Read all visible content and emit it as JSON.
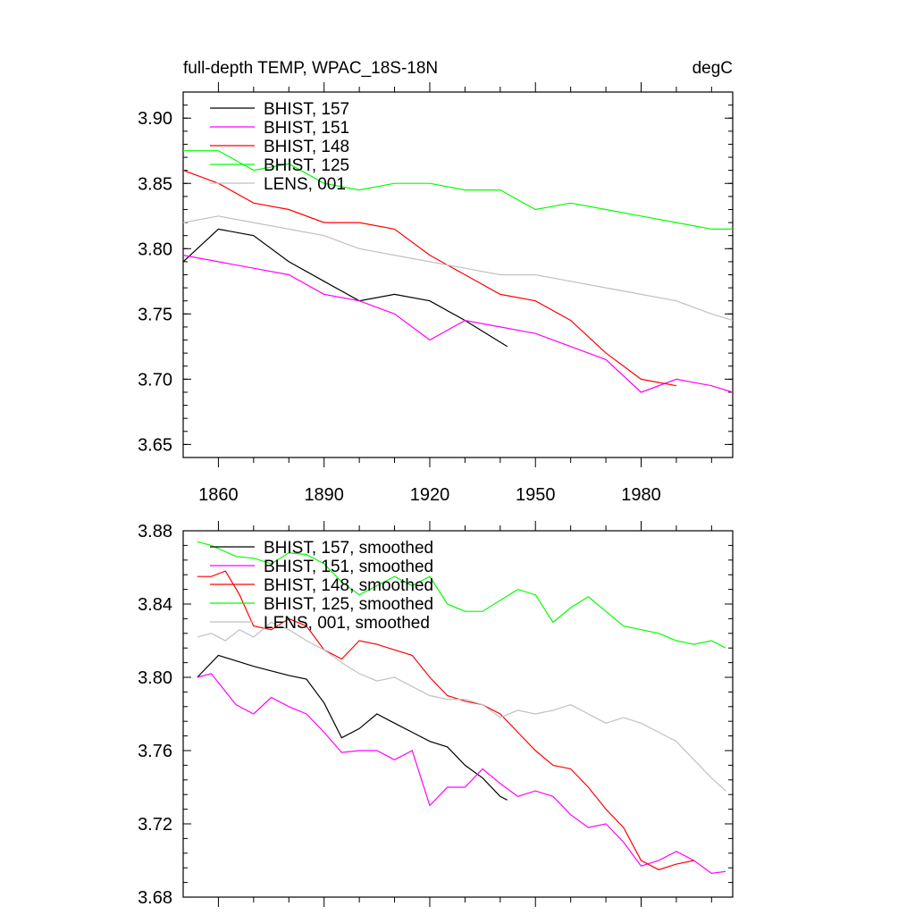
{
  "chart_data": [
    {
      "type": "line",
      "title": "full-depth TEMP, WPAC_18S-18N",
      "units_label": "degC",
      "ylim": [
        3.64,
        3.92
      ],
      "xlim": [
        1850,
        2006
      ],
      "yticks": [
        "3.65",
        "3.70",
        "3.75",
        "3.80",
        "3.85",
        "3.90"
      ],
      "xticks": [
        "1860",
        "1890",
        "1920",
        "1950",
        "1980"
      ],
      "grid": false,
      "legend_position": "top-left",
      "series": [
        {
          "name": "BHIST, 157",
          "color": "#000000",
          "x": [
            1850,
            1860,
            1870,
            1880,
            1890,
            1900,
            1910,
            1920,
            1930,
            1942
          ],
          "values": [
            3.79,
            3.815,
            3.81,
            3.79,
            3.775,
            3.76,
            3.765,
            3.76,
            3.745,
            3.725
          ]
        },
        {
          "name": "BHIST, 151",
          "color": "#ff00ff",
          "x": [
            1850,
            1860,
            1870,
            1880,
            1890,
            1900,
            1910,
            1920,
            1930,
            1940,
            1950,
            1960,
            1970,
            1980,
            1990,
            2000,
            2006
          ],
          "values": [
            3.795,
            3.79,
            3.785,
            3.78,
            3.765,
            3.76,
            3.75,
            3.73,
            3.745,
            3.74,
            3.735,
            3.725,
            3.715,
            3.69,
            3.7,
            3.695,
            3.69
          ]
        },
        {
          "name": "BHIST, 148",
          "color": "#ff0000",
          "x": [
            1850,
            1860,
            1870,
            1880,
            1890,
            1900,
            1910,
            1920,
            1930,
            1940,
            1950,
            1960,
            1970,
            1980,
            1990
          ],
          "values": [
            3.86,
            3.85,
            3.835,
            3.83,
            3.82,
            3.82,
            3.815,
            3.795,
            3.78,
            3.765,
            3.76,
            3.745,
            3.72,
            3.7,
            3.695
          ]
        },
        {
          "name": "BHIST, 125",
          "color": "#00ff00",
          "x": [
            1850,
            1860,
            1870,
            1880,
            1890,
            1900,
            1910,
            1920,
            1930,
            1940,
            1950,
            1960,
            1970,
            1980,
            1990,
            2000,
            2006
          ],
          "values": [
            3.875,
            3.875,
            3.86,
            3.865,
            3.85,
            3.845,
            3.85,
            3.85,
            3.845,
            3.845,
            3.83,
            3.835,
            3.83,
            3.825,
            3.82,
            3.815,
            3.815
          ]
        },
        {
          "name": "LENS, 001",
          "color": "#c0c0c0",
          "x": [
            1850,
            1860,
            1870,
            1880,
            1890,
            1900,
            1910,
            1920,
            1930,
            1940,
            1950,
            1960,
            1970,
            1980,
            1990,
            2000,
            2006
          ],
          "values": [
            3.82,
            3.825,
            3.82,
            3.815,
            3.81,
            3.8,
            3.795,
            3.79,
            3.785,
            3.78,
            3.78,
            3.775,
            3.77,
            3.765,
            3.76,
            3.75,
            3.745
          ]
        }
      ]
    },
    {
      "type": "line",
      "title": "",
      "ylim": [
        3.68,
        3.88
      ],
      "xlim": [
        1850,
        2006
      ],
      "yticks": [
        "3.68",
        "3.72",
        "3.76",
        "3.80",
        "3.84",
        "3.88"
      ],
      "xticks": [],
      "grid": false,
      "legend_position": "top-left",
      "series": [
        {
          "name": "BHIST, 157, smoothed",
          "color": "#000000",
          "x": [
            1854,
            1860,
            1870,
            1880,
            1885,
            1890,
            1895,
            1900,
            1905,
            1910,
            1915,
            1920,
            1925,
            1930,
            1935,
            1940,
            1942
          ],
          "values": [
            3.8,
            3.812,
            3.806,
            3.801,
            3.799,
            3.786,
            3.767,
            3.772,
            3.78,
            3.775,
            3.77,
            3.765,
            3.762,
            3.752,
            3.745,
            3.735,
            3.733
          ]
        },
        {
          "name": "BHIST, 151, smoothed",
          "color": "#ff00ff",
          "x": [
            1854,
            1858,
            1865,
            1870,
            1875,
            1880,
            1885,
            1890,
            1895,
            1900,
            1905,
            1910,
            1915,
            1920,
            1925,
            1930,
            1935,
            1940,
            1945,
            1950,
            1955,
            1960,
            1965,
            1970,
            1975,
            1980,
            1985,
            1990,
            1995,
            2000,
            2004
          ],
          "values": [
            3.8,
            3.802,
            3.785,
            3.78,
            3.789,
            3.784,
            3.78,
            3.77,
            3.759,
            3.76,
            3.76,
            3.755,
            3.76,
            3.73,
            3.74,
            3.74,
            3.75,
            3.742,
            3.735,
            3.738,
            3.735,
            3.725,
            3.718,
            3.72,
            3.71,
            3.697,
            3.7,
            3.705,
            3.7,
            3.693,
            3.694
          ]
        },
        {
          "name": "BHIST, 148, smoothed",
          "color": "#ff0000",
          "x": [
            1854,
            1858,
            1862,
            1866,
            1870,
            1875,
            1880,
            1885,
            1890,
            1895,
            1900,
            1905,
            1910,
            1915,
            1920,
            1925,
            1930,
            1935,
            1940,
            1945,
            1950,
            1955,
            1960,
            1965,
            1970,
            1975,
            1980,
            1985,
            1990,
            1995
          ],
          "values": [
            3.855,
            3.855,
            3.858,
            3.845,
            3.828,
            3.826,
            3.832,
            3.828,
            3.815,
            3.81,
            3.82,
            3.818,
            3.815,
            3.812,
            3.8,
            3.79,
            3.787,
            3.785,
            3.78,
            3.77,
            3.76,
            3.752,
            3.75,
            3.74,
            3.728,
            3.718,
            3.7,
            3.695,
            3.698,
            3.7
          ]
        },
        {
          "name": "BHIST, 125, smoothed",
          "color": "#00ff00",
          "x": [
            1854,
            1858,
            1865,
            1870,
            1875,
            1880,
            1885,
            1890,
            1895,
            1900,
            1905,
            1910,
            1915,
            1920,
            1925,
            1930,
            1935,
            1940,
            1945,
            1950,
            1955,
            1960,
            1965,
            1970,
            1975,
            1980,
            1985,
            1990,
            1995,
            2000,
            2004
          ],
          "values": [
            3.874,
            3.872,
            3.866,
            3.865,
            3.862,
            3.868,
            3.867,
            3.862,
            3.852,
            3.845,
            3.85,
            3.855,
            3.85,
            3.855,
            3.84,
            3.836,
            3.836,
            3.842,
            3.848,
            3.845,
            3.83,
            3.838,
            3.844,
            3.836,
            3.828,
            3.826,
            3.824,
            3.82,
            3.818,
            3.82,
            3.816
          ]
        },
        {
          "name": "LENS, 001, smoothed",
          "color": "#c0c0c0",
          "x": [
            1854,
            1858,
            1862,
            1866,
            1870,
            1875,
            1880,
            1885,
            1890,
            1895,
            1900,
            1905,
            1910,
            1915,
            1920,
            1925,
            1930,
            1935,
            1940,
            1945,
            1950,
            1955,
            1960,
            1965,
            1970,
            1975,
            1980,
            1985,
            1990,
            1995,
            2000,
            2004
          ],
          "values": [
            3.822,
            3.824,
            3.82,
            3.826,
            3.822,
            3.83,
            3.826,
            3.82,
            3.815,
            3.808,
            3.802,
            3.798,
            3.8,
            3.795,
            3.79,
            3.788,
            3.788,
            3.785,
            3.778,
            3.782,
            3.78,
            3.782,
            3.785,
            3.78,
            3.775,
            3.778,
            3.775,
            3.77,
            3.765,
            3.755,
            3.745,
            3.738
          ]
        }
      ]
    }
  ]
}
